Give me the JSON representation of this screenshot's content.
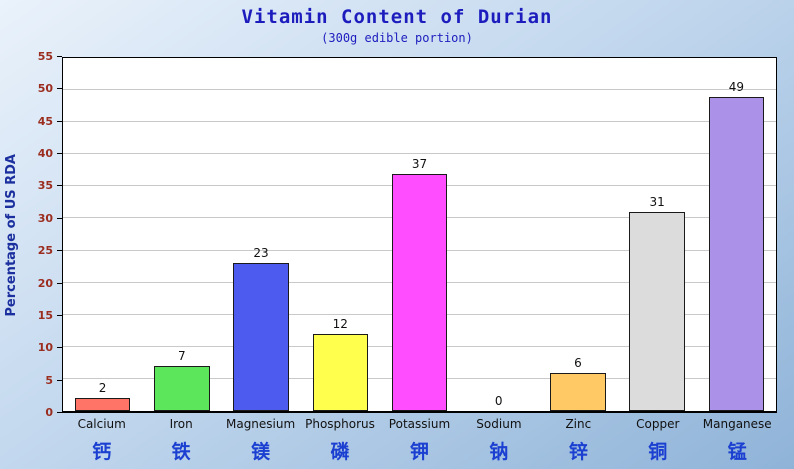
{
  "chart_data": {
    "type": "bar",
    "title": "Vitamin Content of Durian",
    "subtitle": "(300g edible portion)",
    "ylabel": "Percentage of US RDA",
    "categories": [
      "Calcium",
      "Iron",
      "Magnesium",
      "Phosphorus",
      "Potassium",
      "Sodium",
      "Zinc",
      "Copper",
      "Manganese"
    ],
    "categories_zh": [
      "钙",
      "铁",
      "镁",
      "磷",
      "钾",
      "钠",
      "锌",
      "铜",
      "锰"
    ],
    "values": [
      2,
      7,
      23,
      12,
      37,
      0,
      6,
      31,
      49
    ],
    "bar_colors": [
      "#ff7466",
      "#5ce65c",
      "#4d5cee",
      "#ffff4d",
      "#ff4dff",
      "#ffffff",
      "#ffc966",
      "#dcdcdc",
      "#ab91e8"
    ],
    "ylim": [
      0,
      55
    ],
    "ytick_step": 5,
    "grid": true,
    "legend": "none"
  },
  "colors": {
    "background_top": "#eaf2fb",
    "background_bottom": "#8fb3d8",
    "title": "#1d1dbe",
    "subtitle": "#1d1dbe",
    "y_axis_title": "#1b2f9e",
    "y_tick_label": "#9b2d1f",
    "x_label": "#111111",
    "x_label_zh": "#1b3fd1",
    "gridline": "#c9c9c9",
    "plot_bg": "#ffffff",
    "axis": "#000000",
    "value_label": "#111111"
  }
}
